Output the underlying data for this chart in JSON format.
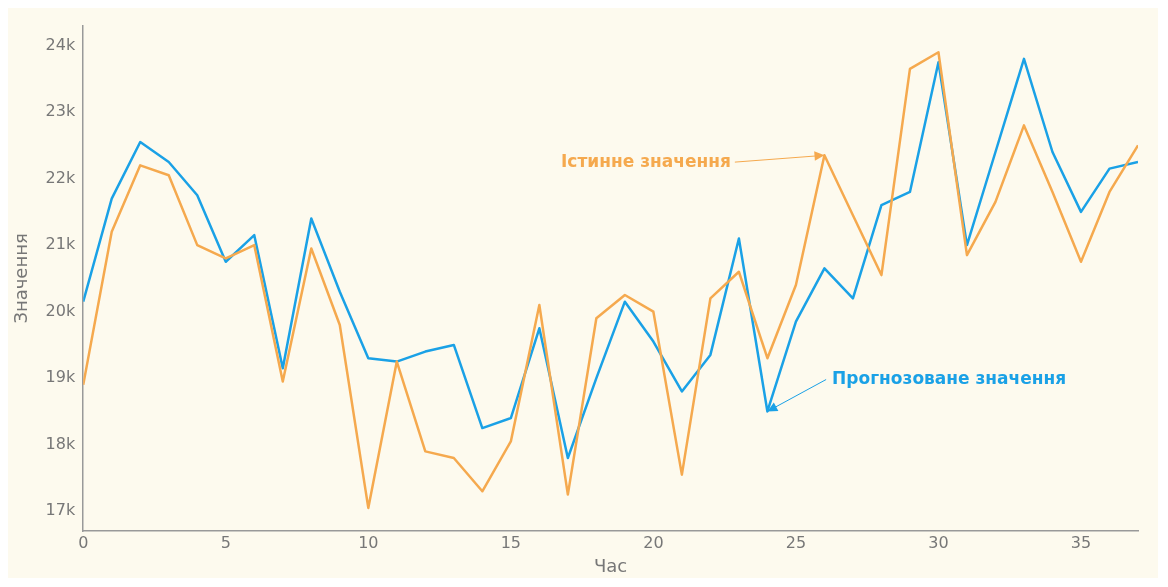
{
  "chart_data": {
    "type": "line",
    "xlabel": "Час",
    "ylabel": "Значення",
    "x": [
      0,
      1,
      2,
      3,
      4,
      5,
      6,
      7,
      8,
      9,
      10,
      11,
      12,
      13,
      14,
      15,
      16,
      17,
      18,
      19,
      20,
      21,
      22,
      23,
      24,
      25,
      26,
      27,
      28,
      29,
      30,
      31,
      32,
      33,
      34,
      35,
      36,
      37
    ],
    "series": [
      {
        "color": "#f5a94e",
        "values": [
          18900,
          21200,
          22200,
          22050,
          21000,
          20800,
          21000,
          18950,
          20950,
          19800,
          17050,
          19250,
          17900,
          17800,
          17300,
          18050,
          20100,
          17250,
          19900,
          20250,
          20000,
          17550,
          20200,
          20600,
          19300,
          20400,
          22350,
          21450,
          20550,
          23650,
          23900,
          20850,
          21650,
          22800,
          21800,
          20750,
          21800,
          22500
        ]
      },
      {
        "color": "#1aa1e6",
        "values": [
          20150,
          21700,
          22550,
          22250,
          21750,
          20750,
          21150,
          19150,
          21400,
          20300,
          19300,
          19250,
          19400,
          19500,
          18250,
          18400,
          19750,
          17800,
          19000,
          20150,
          19550,
          18800,
          19350,
          21100,
          18500,
          19850,
          20650,
          20200,
          21600,
          21800,
          23750,
          21000,
          22400,
          23800,
          22400,
          21500,
          22150,
          22250
        ]
      }
    ],
    "annotations": [
      {
        "text": "Істинне значення",
        "x": 26,
        "y": 22350
      },
      {
        "text": "Прогнозоване значення",
        "x": 24,
        "y": 18500
      }
    ],
    "xlim": [
      0,
      37
    ],
    "xticks": [
      0,
      5,
      10,
      15,
      20,
      25,
      30,
      35
    ],
    "ylim": [
      16700,
      24300
    ],
    "yticks": [
      {
        "value": 17000,
        "label": "17k"
      },
      {
        "value": 18000,
        "label": "18k"
      },
      {
        "value": 19000,
        "label": "19k"
      },
      {
        "value": 20000,
        "label": "20k"
      },
      {
        "value": 21000,
        "label": "21k"
      },
      {
        "value": 22000,
        "label": "22k"
      },
      {
        "value": 23000,
        "label": "23k"
      },
      {
        "value": 24000,
        "label": "24k"
      }
    ],
    "grid": false,
    "legend": false,
    "marker": "none",
    "line_style": "solid"
  }
}
